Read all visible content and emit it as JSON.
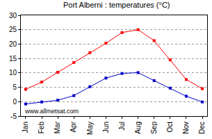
{
  "chart_data": {
    "type": "line",
    "title": "Port Alberni : temperatures (°C)",
    "categories": [
      "Jan",
      "Feb",
      "Mar",
      "Apr",
      "May",
      "Jun",
      "Jul",
      "Aug",
      "Sep",
      "Oct",
      "Nov",
      "Dec"
    ],
    "series": [
      {
        "color": "#ff0000",
        "marker": "square",
        "values": [
          4.3,
          6.8,
          10.2,
          13.6,
          17.0,
          20.3,
          24.0,
          25.0,
          21.2,
          14.5,
          7.7,
          4.5
        ]
      },
      {
        "color": "#0000cc",
        "marker": "square",
        "values": [
          -0.8,
          -0.1,
          0.5,
          2.1,
          5.2,
          8.2,
          9.8,
          10.1,
          7.3,
          4.7,
          1.9,
          -0.1
        ]
      }
    ],
    "ylim": [
      -5,
      30
    ],
    "yticks": [
      -5,
      0,
      5,
      10,
      15,
      20,
      25,
      30
    ],
    "grid": true,
    "annotations": [
      "www.allmetsat.com"
    ]
  }
}
